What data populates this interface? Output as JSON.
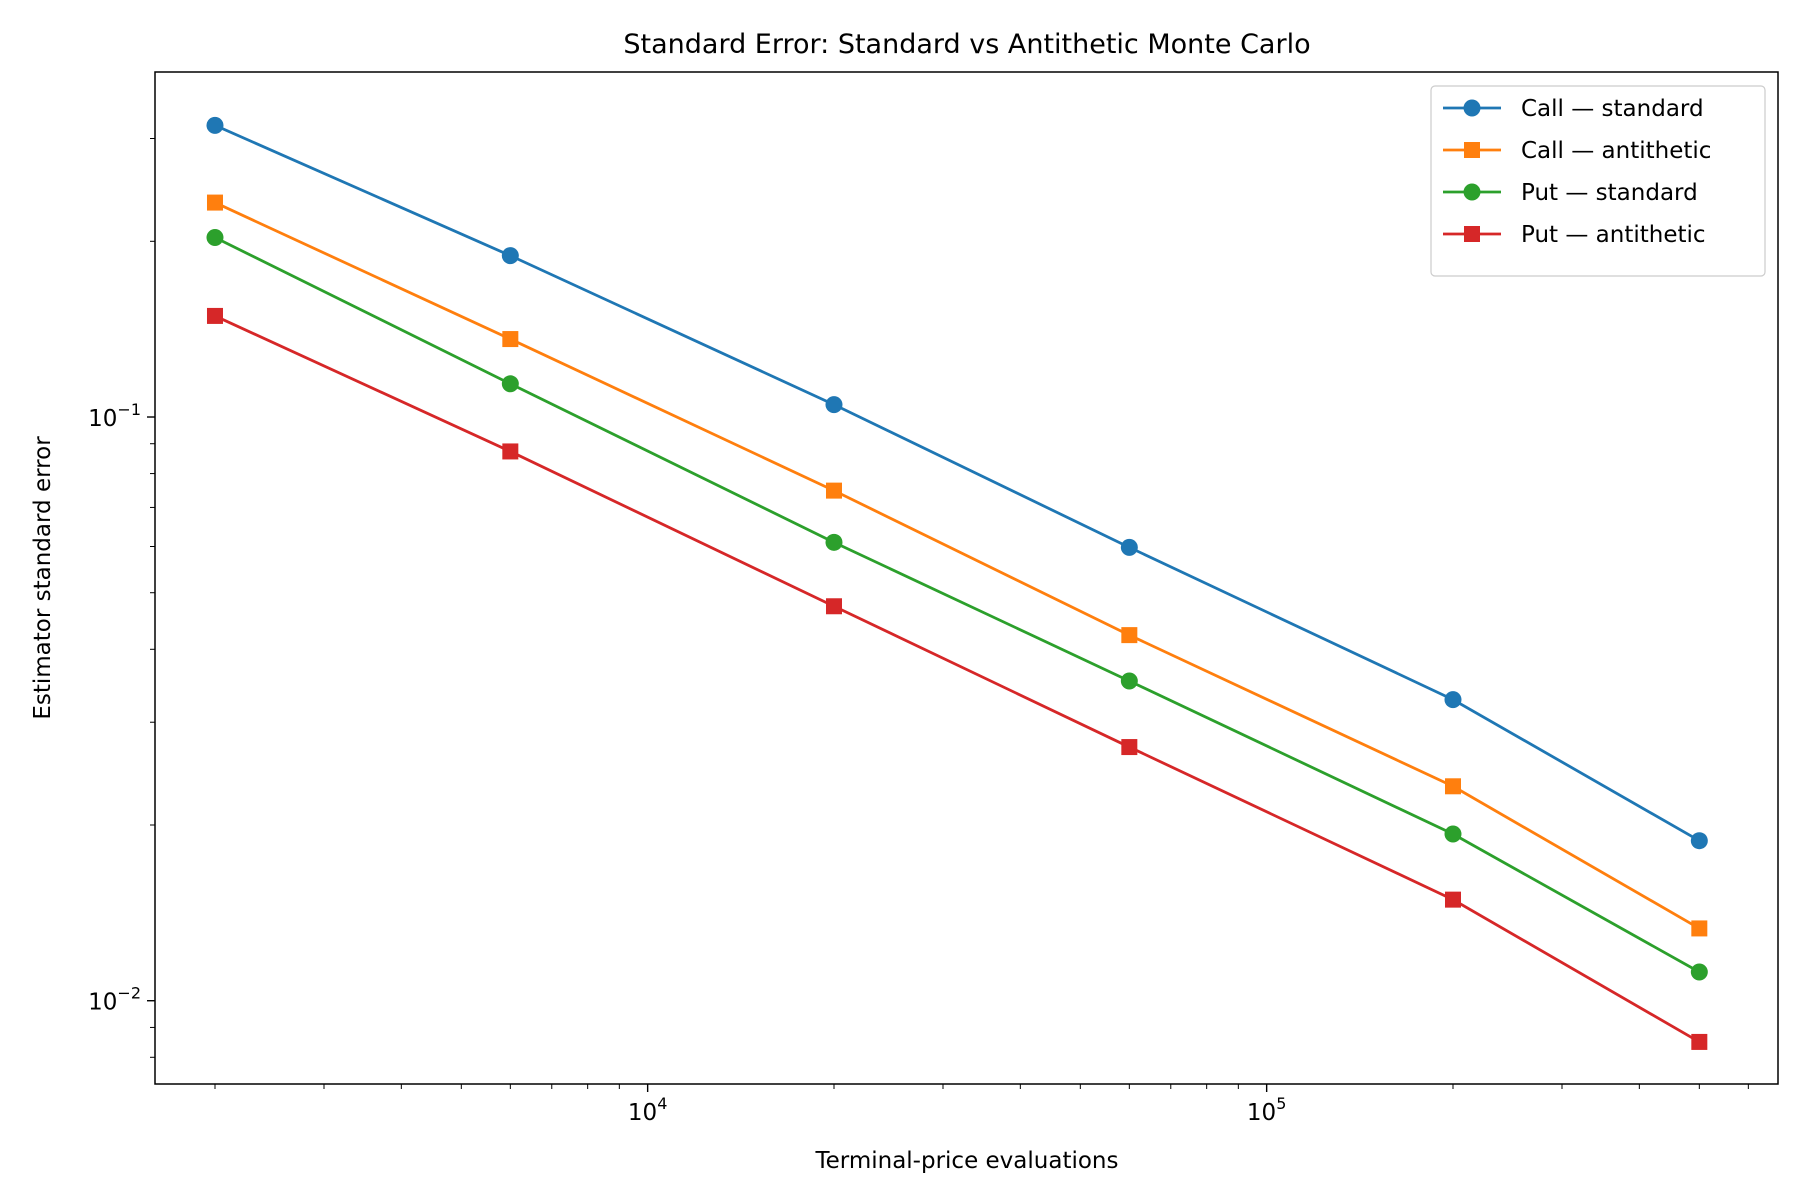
{
  "chart_data": {
    "type": "line",
    "title": "Standard Error: Standard vs Antithetic Monte Carlo",
    "xlabel": "Terminal-price evaluations",
    "ylabel": "Estimator standard error",
    "x_scale": "log",
    "y_scale": "log",
    "xlim": [
      1600,
      670000
    ],
    "ylim": [
      0.0072,
      0.39
    ],
    "x_ticks": [
      {
        "value": 10000,
        "base": "10",
        "exp": "4"
      },
      {
        "value": 100000,
        "base": "10",
        "exp": "5"
      }
    ],
    "y_ticks": [
      {
        "value": 0.1,
        "base": "10",
        "exp": "−1"
      },
      {
        "value": 0.01,
        "base": "10",
        "exp": "−2"
      }
    ],
    "grid": false,
    "legend_position": "top-right",
    "x": [
      2000,
      6000,
      20000,
      60000,
      200000,
      500000
    ],
    "series": [
      {
        "name": "Call — standard",
        "color": "#1f77b4",
        "marker": "circle",
        "values": [
          0.316,
          0.189,
          0.105,
          0.0598,
          0.0328,
          0.0188
        ]
      },
      {
        "name": "Call — antithetic",
        "color": "#ff7f0e",
        "marker": "square",
        "values": [
          0.233,
          0.136,
          0.0748,
          0.0423,
          0.0233,
          0.0133
        ]
      },
      {
        "name": "Put — standard",
        "color": "#2ca02c",
        "marker": "circle",
        "values": [
          0.203,
          0.114,
          0.061,
          0.0353,
          0.0193,
          0.0112
        ]
      },
      {
        "name": "Put — antithetic",
        "color": "#d62728",
        "marker": "square",
        "values": [
          0.149,
          0.0873,
          0.0474,
          0.0272,
          0.0149,
          0.0085
        ]
      }
    ]
  }
}
